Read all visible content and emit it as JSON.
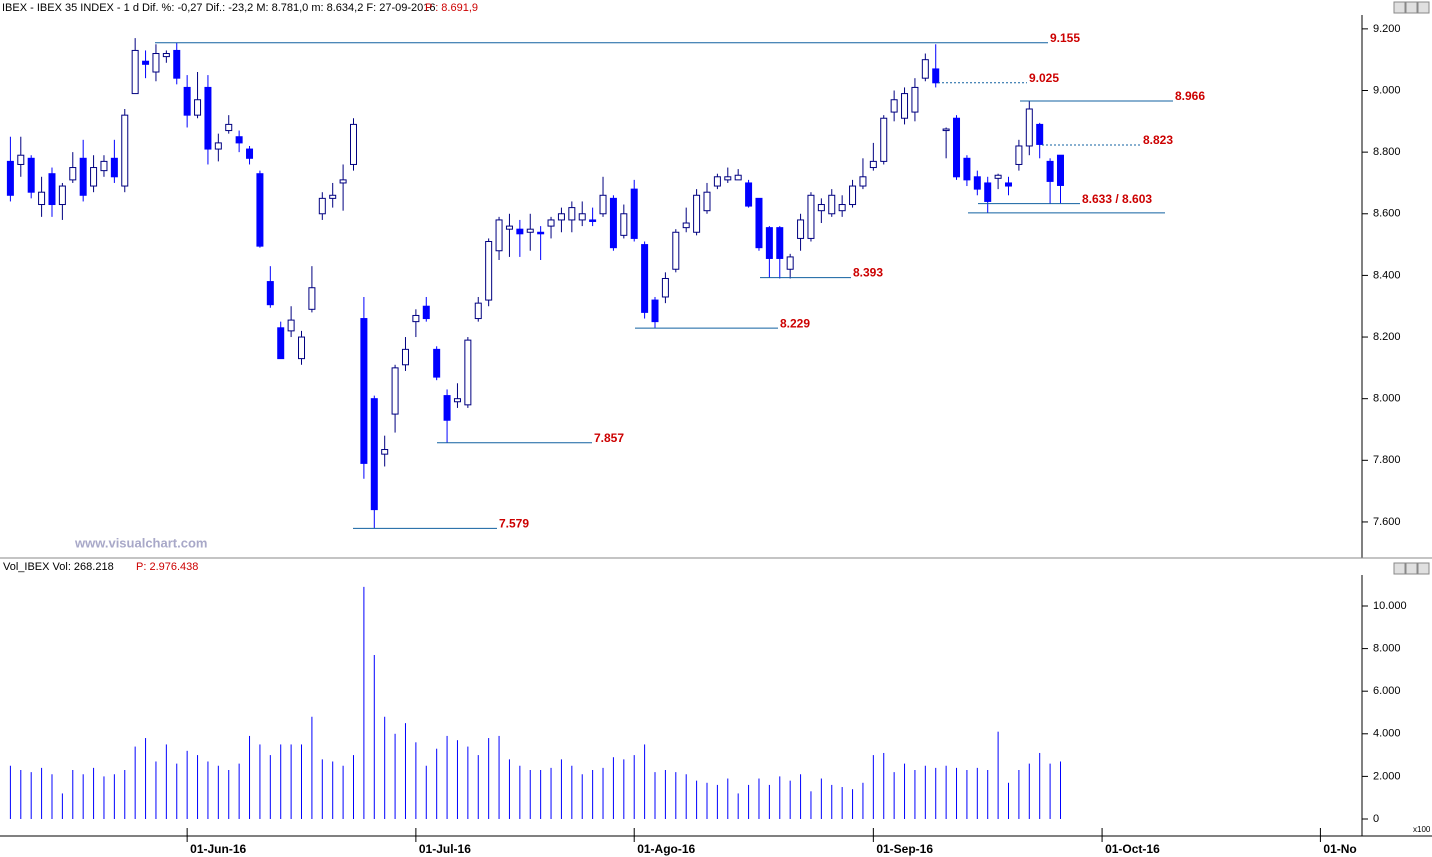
{
  "chart_data": [
    {
      "type": "candlestick",
      "title": "IBEX - IBEX 35 INDEX - 1 d  Dif. %: -0,27  Dif.: -23,2  M: 8.781,0  m: 8.634,2  F: 27-09-2016",
      "title_price": "P : 8.691,9",
      "watermark": "www.visualchart.com",
      "color": "#0000ff",
      "xlim": [
        -1,
        130
      ],
      "ylim": [
        7483,
        9245
      ],
      "yticks": [
        {
          "value": 7600,
          "label": "7.600"
        },
        {
          "value": 7800,
          "label": "7.800"
        },
        {
          "value": 8000,
          "label": "8.000"
        },
        {
          "value": 8200,
          "label": "8.200"
        },
        {
          "value": 8400,
          "label": "8.400"
        },
        {
          "value": 8600,
          "label": "8.600"
        },
        {
          "value": 8800,
          "label": "8.800"
        },
        {
          "value": 9000,
          "label": "9.000"
        },
        {
          "value": 9200,
          "label": "9.200"
        }
      ],
      "open": [
        8770,
        8760,
        8780,
        8630,
        8730,
        8630,
        8710,
        8780,
        8690,
        8740,
        8780,
        8690,
        8990,
        9095,
        9060,
        9110,
        9130,
        9010,
        8920,
        9010,
        8810,
        8870,
        8850,
        8810,
        8730,
        8380,
        8230,
        8220,
        8130,
        8290,
        8600,
        8650,
        8700,
        8760,
        8260,
        8000,
        7820,
        7950,
        8110,
        8250,
        8300,
        8160,
        8010,
        7990,
        7980,
        8260,
        8320,
        8480,
        8550,
        8550,
        8540,
        8540,
        8560,
        8580,
        8580,
        8580,
        8580,
        8600,
        8650,
        8530,
        8680,
        8500,
        8320,
        8330,
        8420,
        8555,
        8540,
        8610,
        8690,
        8710,
        8710,
        8700,
        8650,
        8555,
        8555,
        8420,
        8520,
        8520,
        8610,
        8600,
        8610,
        8630,
        8690,
        8750,
        8770,
        8930,
        8910,
        8930,
        9040,
        9070,
        8870,
        8910,
        8780,
        8720,
        8700,
        8715,
        8700,
        8760,
        8820,
        8890,
        8770,
        8790
      ],
      "high": [
        8850,
        8850,
        8790,
        8720,
        8750,
        8700,
        8800,
        8840,
        8790,
        8790,
        8840,
        8940,
        9170,
        9130,
        9150,
        9130,
        9155,
        9050,
        9060,
        9050,
        8860,
        8920,
        8870,
        8820,
        8740,
        8430,
        8250,
        8300,
        8220,
        8430,
        8670,
        8700,
        8760,
        8910,
        8330,
        8010,
        7880,
        8110,
        8200,
        8290,
        8330,
        8170,
        8030,
        8050,
        8200,
        8330,
        8520,
        8590,
        8600,
        8580,
        8600,
        8560,
        8590,
        8620,
        8640,
        8640,
        8620,
        8720,
        8660,
        8630,
        8710,
        8510,
        8330,
        8410,
        8550,
        8620,
        8680,
        8700,
        8730,
        8750,
        8745,
        8710,
        8650,
        8560,
        8560,
        8470,
        8600,
        8670,
        8650,
        8680,
        8660,
        8710,
        8780,
        8830,
        8920,
        9000,
        9010,
        9040,
        9120,
        9150,
        8880,
        8920,
        8790,
        8740,
        8720,
        8730,
        8720,
        8840,
        8966,
        8895,
        8780,
        8781
      ],
      "low": [
        8640,
        8720,
        8650,
        8590,
        8590,
        8580,
        8700,
        8640,
        8670,
        8720,
        8700,
        8670,
        8990,
        9040,
        9030,
        9090,
        9020,
        8880,
        8910,
        8760,
        8770,
        8860,
        8800,
        8760,
        8490,
        8295,
        8130,
        8200,
        8110,
        8280,
        8580,
        8620,
        8610,
        8740,
        7740,
        7579,
        7780,
        7890,
        8090,
        8200,
        8250,
        8060,
        7857,
        7970,
        7970,
        8250,
        8300,
        8450,
        8460,
        8460,
        8480,
        8450,
        8520,
        8540,
        8540,
        8560,
        8560,
        8590,
        8480,
        8520,
        8510,
        8260,
        8229,
        8310,
        8410,
        8540,
        8530,
        8600,
        8680,
        8700,
        8710,
        8620,
        8480,
        8393,
        8390,
        8390,
        8480,
        8510,
        8570,
        8590,
        8590,
        8620,
        8680,
        8740,
        8760,
        8900,
        8890,
        8900,
        9030,
        9010,
        8780,
        8710,
        8690,
        8660,
        8603,
        8680,
        8660,
        8740,
        8790,
        8780,
        8633,
        8634.2
      ],
      "close": [
        8660,
        8790,
        8670,
        8670,
        8630,
        8690,
        8750,
        8660,
        8750,
        8770,
        8720,
        8920,
        9130,
        9085,
        9120,
        9120,
        9040,
        8920,
        8970,
        8810,
        8830,
        8890,
        8830,
        8780,
        8495,
        8305,
        8130,
        8255,
        8200,
        8360,
        8650,
        8660,
        8710,
        8890,
        7790,
        7640,
        7835,
        8100,
        8160,
        8270,
        8260,
        8070,
        7930,
        8000,
        8190,
        8310,
        8510,
        8580,
        8560,
        8535,
        8550,
        8535,
        8580,
        8600,
        8620,
        8600,
        8575,
        8660,
        8490,
        8600,
        8520,
        8280,
        8250,
        8390,
        8540,
        8570,
        8660,
        8670,
        8720,
        8720,
        8725,
        8625,
        8490,
        8455,
        8455,
        8460,
        8580,
        8660,
        8630,
        8660,
        8630,
        8690,
        8720,
        8770,
        8910,
        8970,
        8990,
        9010,
        9100,
        9025,
        8875,
        8720,
        8710,
        8680,
        8640,
        8725,
        8690,
        8820,
        8940,
        8825,
        8705,
        8691.9
      ],
      "annotations": [
        {
          "label": "9.155",
          "value": 9155
        },
        {
          "label": "9.025",
          "value": 9025
        },
        {
          "label": "8.966",
          "value": 8966
        },
        {
          "label": "8.823",
          "value": 8823
        },
        {
          "label": "8.633 / 8.603",
          "values": [
            8633,
            8603
          ]
        },
        {
          "label": "8.393",
          "value": 8393
        },
        {
          "label": "8.229",
          "value": 8229
        },
        {
          "label": "7.857",
          "value": 7857
        },
        {
          "label": "7.579",
          "value": 7579
        }
      ]
    },
    {
      "type": "volume",
      "title": "Vol_IBEX Vol: 268.218",
      "title_price": "P: 2.976.438",
      "unit_label": "x100",
      "color": "#0000ff",
      "xlim": [
        -1,
        130
      ],
      "ylim": [
        -423,
        11455
      ],
      "yticks": [
        0,
        {
          "value": 2000,
          "label": "2.000"
        },
        {
          "value": 4000,
          "label": "4.000"
        },
        {
          "value": 6000,
          "label": "6.000"
        },
        {
          "value": 8000,
          "label": "8.000"
        },
        {
          "value": 10000,
          "label": "10.000"
        }
      ],
      "xticks": [
        {
          "value": 17,
          "label": "01-Jun-16"
        },
        {
          "value": 39,
          "label": "01-Jul-16"
        },
        {
          "value": 60,
          "label": "01-Ago-16"
        },
        {
          "value": 83,
          "label": "01-Sep-16"
        },
        {
          "value": 105,
          "label": "01-Oct-16"
        },
        {
          "value": 126,
          "label": "01-No"
        }
      ],
      "values": [
        2500,
        2300,
        2200,
        2400,
        2100,
        1200,
        2300,
        2100,
        2400,
        2000,
        2100,
        2300,
        3400,
        3800,
        2700,
        3500,
        2600,
        3200,
        3000,
        2700,
        2500,
        2300,
        2600,
        3900,
        3500,
        3000,
        3500,
        3500,
        3500,
        4800,
        2800,
        2700,
        2500,
        3000,
        10900,
        7700,
        4800,
        4000,
        4500,
        3600,
        2500,
        3300,
        3900,
        3700,
        3400,
        3000,
        3800,
        3900,
        2800,
        2500,
        2300,
        2300,
        2400,
        2800,
        2500,
        2100,
        2300,
        2400,
        2900,
        2800,
        3000,
        3500,
        2200,
        2300,
        2200,
        2100,
        1800,
        1700,
        1600,
        1900,
        1200,
        1600,
        1900,
        1600,
        2000,
        1800,
        2100,
        1300,
        1900,
        1600,
        1500,
        1400,
        1700,
        3000,
        3100,
        2200,
        2600,
        2300,
        2500,
        2400,
        2500,
        2400,
        2300,
        2400,
        2300,
        4100,
        1700,
        2300,
        2600,
        3100,
        2600,
        2700
      ]
    }
  ]
}
